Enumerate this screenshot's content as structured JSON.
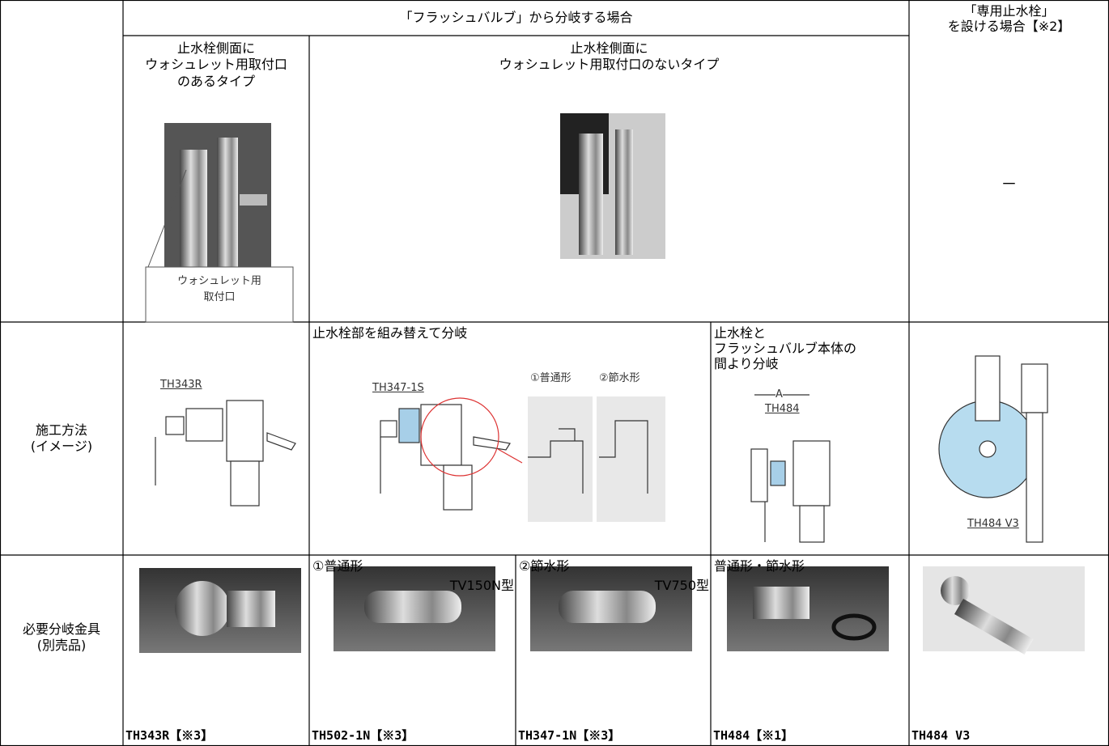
{
  "header": {
    "main": "「フラッシュバルブ」から分岐する場合",
    "dedicated": [
      "「専用止水栓」",
      "を設ける場合【※2】"
    ]
  },
  "types": {
    "with_port": [
      "止水栓側面に",
      "ウォシュレット用取付口",
      "のあるタイプ"
    ],
    "callout": [
      "ウォシュレット用",
      "取付口"
    ],
    "without_port": [
      "止水栓側面に",
      "ウォシュレット用取付口のないタイプ"
    ],
    "dedicated": "－"
  },
  "method": {
    "label": [
      "施工方法",
      "(イメージ)"
    ],
    "col1_part": "TH343R",
    "rebuild": "止水栓部を組み替えて分岐",
    "rebuild_part": "TH347-1S",
    "normal": "①普通形",
    "saving": "②節水形",
    "between": [
      "止水栓と",
      "フラッシュバルブ本体の",
      "間より分岐"
    ],
    "dim": "A",
    "between_part": "TH484",
    "dedicated_part": "TH484 V3"
  },
  "fittings": {
    "label": [
      "必要分岐金具",
      "(別売品)"
    ],
    "items": [
      {
        "caption": "TH343R【※3】"
      },
      {
        "title": "①普通形",
        "model": "TV150N型",
        "caption": "TH502-1N【※3】"
      },
      {
        "title": "②節水形",
        "model": "TV750型",
        "caption": "TH347-1N【※3】"
      },
      {
        "title": "普通形・節水形",
        "caption": "TH484【※1】"
      },
      {
        "caption": "TH484 V3"
      }
    ]
  }
}
